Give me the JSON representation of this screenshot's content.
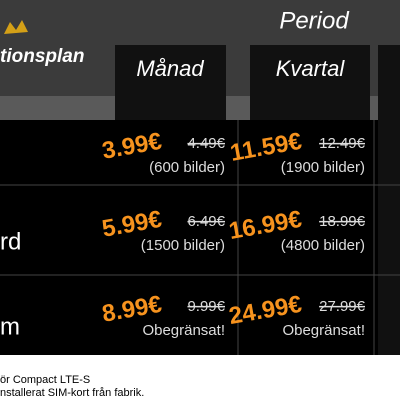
{
  "header": {
    "plan_title": "tionsplan",
    "period": "Period"
  },
  "columns": [
    "Månad",
    "Kvartal"
  ],
  "rows": [
    {
      "cells": [
        {
          "price": "3.99€",
          "old_price": "4.49€",
          "note": "(600 bilder)"
        },
        {
          "price": "11.59€",
          "old_price": "12.49€",
          "note": "(1900 bilder)"
        }
      ]
    },
    {
      "label": "rd",
      "cells": [
        {
          "price": "5.99€",
          "old_price": "6.49€",
          "note": "(1500 bilder)"
        },
        {
          "price": "16.99€",
          "old_price": "18.99€",
          "note": "(4800 bilder)"
        }
      ]
    },
    {
      "label": "m",
      "cells": [
        {
          "price": "8.99€",
          "old_price": "9.99€",
          "note": "Obegränsat!"
        },
        {
          "price": "24.99€",
          "old_price": "27.99€",
          "note": "Obegränsat!"
        }
      ]
    }
  ],
  "footnotes": [
    "ör Compact LTE-S",
    "nstallerat SIM-kort från fabrik."
  ]
}
